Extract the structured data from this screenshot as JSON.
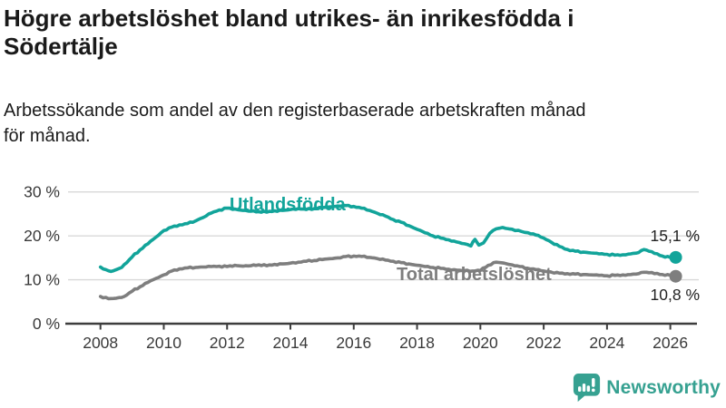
{
  "page": {
    "title_lines": [
      "Högre arbetslöshet bland utrikes- än inrikesfödda i",
      "Södertälje"
    ],
    "subtitle_lines": [
      "Arbetssökande som andel av den registerbaserade arbetskraften månad",
      "för månad."
    ]
  },
  "branding": {
    "name": "Newsworthy",
    "icon": "newsworthy-bar-chart-bubble-icon",
    "color": "#36a191"
  },
  "colors": {
    "series_foreign_born": "#12a49a",
    "series_total": "#7e7e7e",
    "grid": "#d8d8d8",
    "axis": "#3d3d3d",
    "tick_text": "#3a3a3a",
    "value_text": "#222222",
    "title_text": "#1a1a1a"
  },
  "chart_data": {
    "type": "line",
    "title": "Högre arbetslöshet bland utrikes- än inrikesfödda i Södertälje",
    "subtitle": "Arbetssökande som andel av den registerbaserade arbetskraften månad för månad.",
    "xlabel": "",
    "ylabel": "",
    "grid": "horizontal",
    "legend": "inline-labels",
    "xlim": [
      2007.0,
      2026.9
    ],
    "ylim": [
      0,
      33
    ],
    "x_ticks": [
      2008,
      2010,
      2012,
      2014,
      2016,
      2018,
      2020,
      2022,
      2024,
      2026
    ],
    "y_ticks": [
      {
        "value": 0,
        "label": "0 %"
      },
      {
        "value": 10,
        "label": "10 %"
      },
      {
        "value": 20,
        "label": "20 %"
      },
      {
        "value": 30,
        "label": "30 %"
      }
    ],
    "series": [
      {
        "name": "Utlandsfödda",
        "color": "#12a49a",
        "end_label": "15,1 %",
        "end_value": 15.1,
        "points": [
          [
            2008.0,
            12.9
          ],
          [
            2008.17,
            12.3
          ],
          [
            2008.33,
            11.9
          ],
          [
            2008.5,
            12.3
          ],
          [
            2008.67,
            12.8
          ],
          [
            2008.83,
            13.9
          ],
          [
            2009.0,
            15.2
          ],
          [
            2009.25,
            16.8
          ],
          [
            2009.5,
            18.2
          ],
          [
            2009.75,
            19.7
          ],
          [
            2010.0,
            21.2
          ],
          [
            2010.25,
            22.0
          ],
          [
            2010.5,
            22.5
          ],
          [
            2010.75,
            22.8
          ],
          [
            2011.0,
            23.4
          ],
          [
            2011.25,
            24.2
          ],
          [
            2011.5,
            25.2
          ],
          [
            2011.75,
            25.9
          ],
          [
            2012.0,
            26.3
          ],
          [
            2012.25,
            26.1
          ],
          [
            2012.5,
            25.8
          ],
          [
            2012.75,
            25.6
          ],
          [
            2013.0,
            25.5
          ],
          [
            2013.25,
            25.4
          ],
          [
            2013.5,
            25.7
          ],
          [
            2013.75,
            25.8
          ],
          [
            2014.0,
            26.0
          ],
          [
            2014.25,
            26.2
          ],
          [
            2014.5,
            26.0
          ],
          [
            2014.75,
            26.2
          ],
          [
            2015.0,
            26.4
          ],
          [
            2015.25,
            26.6
          ],
          [
            2015.5,
            26.8
          ],
          [
            2015.75,
            26.9
          ],
          [
            2016.0,
            26.7
          ],
          [
            2016.25,
            26.3
          ],
          [
            2016.5,
            25.8
          ],
          [
            2016.75,
            25.1
          ],
          [
            2017.0,
            24.5
          ],
          [
            2017.25,
            23.7
          ],
          [
            2017.5,
            23.1
          ],
          [
            2017.75,
            22.3
          ],
          [
            2018.0,
            21.5
          ],
          [
            2018.25,
            20.7
          ],
          [
            2018.5,
            20.0
          ],
          [
            2018.75,
            19.5
          ],
          [
            2019.0,
            19.1
          ],
          [
            2019.25,
            18.6
          ],
          [
            2019.5,
            18.2
          ],
          [
            2019.7,
            17.7
          ],
          [
            2019.83,
            19.2
          ],
          [
            2019.95,
            17.9
          ],
          [
            2020.1,
            18.4
          ],
          [
            2020.3,
            20.6
          ],
          [
            2020.5,
            21.6
          ],
          [
            2020.7,
            21.9
          ],
          [
            2020.9,
            21.6
          ],
          [
            2021.1,
            21.2
          ],
          [
            2021.3,
            21.0
          ],
          [
            2021.5,
            20.7
          ],
          [
            2021.75,
            20.2
          ],
          [
            2022.0,
            19.5
          ],
          [
            2022.25,
            18.5
          ],
          [
            2022.5,
            17.6
          ],
          [
            2022.75,
            16.9
          ],
          [
            2023.0,
            16.5
          ],
          [
            2023.25,
            16.3
          ],
          [
            2023.5,
            16.1
          ],
          [
            2023.75,
            15.9
          ],
          [
            2024.0,
            15.8
          ],
          [
            2024.25,
            15.6
          ],
          [
            2024.5,
            15.7
          ],
          [
            2024.75,
            15.9
          ],
          [
            2025.0,
            16.2
          ],
          [
            2025.17,
            16.9
          ],
          [
            2025.33,
            16.5
          ],
          [
            2025.5,
            16.0
          ],
          [
            2025.75,
            15.4
          ],
          [
            2026.0,
            15.1
          ],
          [
            2026.17,
            15.1
          ]
        ]
      },
      {
        "name": "Total arbetslöshet",
        "color": "#7e7e7e",
        "end_label": "10,8 %",
        "end_value": 10.8,
        "points": [
          [
            2008.0,
            6.2
          ],
          [
            2008.25,
            5.7
          ],
          [
            2008.5,
            5.8
          ],
          [
            2008.75,
            6.2
          ],
          [
            2009.0,
            7.4
          ],
          [
            2009.25,
            8.4
          ],
          [
            2009.5,
            9.4
          ],
          [
            2009.75,
            10.3
          ],
          [
            2010.0,
            11.1
          ],
          [
            2010.25,
            12.0
          ],
          [
            2010.5,
            12.5
          ],
          [
            2010.75,
            12.7
          ],
          [
            2011.0,
            12.8
          ],
          [
            2011.25,
            12.9
          ],
          [
            2011.5,
            13.0
          ],
          [
            2011.75,
            13.1
          ],
          [
            2012.0,
            13.0
          ],
          [
            2012.25,
            13.3
          ],
          [
            2012.5,
            13.1
          ],
          [
            2012.75,
            13.2
          ],
          [
            2013.0,
            13.4
          ],
          [
            2013.25,
            13.2
          ],
          [
            2013.5,
            13.5
          ],
          [
            2013.75,
            13.6
          ],
          [
            2014.0,
            13.8
          ],
          [
            2014.25,
            14.0
          ],
          [
            2014.5,
            14.2
          ],
          [
            2014.75,
            14.4
          ],
          [
            2015.0,
            14.6
          ],
          [
            2015.25,
            14.8
          ],
          [
            2015.5,
            15.0
          ],
          [
            2015.75,
            15.3
          ],
          [
            2016.0,
            15.4
          ],
          [
            2016.25,
            15.3
          ],
          [
            2016.5,
            15.1
          ],
          [
            2016.75,
            14.8
          ],
          [
            2017.0,
            14.5
          ],
          [
            2017.25,
            14.2
          ],
          [
            2017.5,
            13.9
          ],
          [
            2017.75,
            13.6
          ],
          [
            2018.0,
            13.3
          ],
          [
            2018.25,
            13.0
          ],
          [
            2018.5,
            12.8
          ],
          [
            2018.75,
            12.6
          ],
          [
            2019.0,
            12.4
          ],
          [
            2019.25,
            12.2
          ],
          [
            2019.5,
            12.1
          ],
          [
            2019.75,
            12.0
          ],
          [
            2020.0,
            12.1
          ],
          [
            2020.25,
            13.3
          ],
          [
            2020.5,
            14.0
          ],
          [
            2020.75,
            13.8
          ],
          [
            2021.0,
            13.4
          ],
          [
            2021.25,
            13.0
          ],
          [
            2021.5,
            12.6
          ],
          [
            2021.75,
            12.3
          ],
          [
            2022.0,
            12.0
          ],
          [
            2022.25,
            11.7
          ],
          [
            2022.5,
            11.5
          ],
          [
            2022.75,
            11.4
          ],
          [
            2023.0,
            11.3
          ],
          [
            2023.25,
            11.2
          ],
          [
            2023.5,
            11.1
          ],
          [
            2023.75,
            11.0
          ],
          [
            2024.0,
            10.9
          ],
          [
            2024.25,
            11.0
          ],
          [
            2024.5,
            11.1
          ],
          [
            2024.75,
            11.2
          ],
          [
            2025.0,
            11.4
          ],
          [
            2025.17,
            11.7
          ],
          [
            2025.33,
            11.6
          ],
          [
            2025.5,
            11.4
          ],
          [
            2025.75,
            11.2
          ],
          [
            2026.0,
            11.0
          ],
          [
            2026.17,
            10.8
          ]
        ]
      }
    ]
  }
}
